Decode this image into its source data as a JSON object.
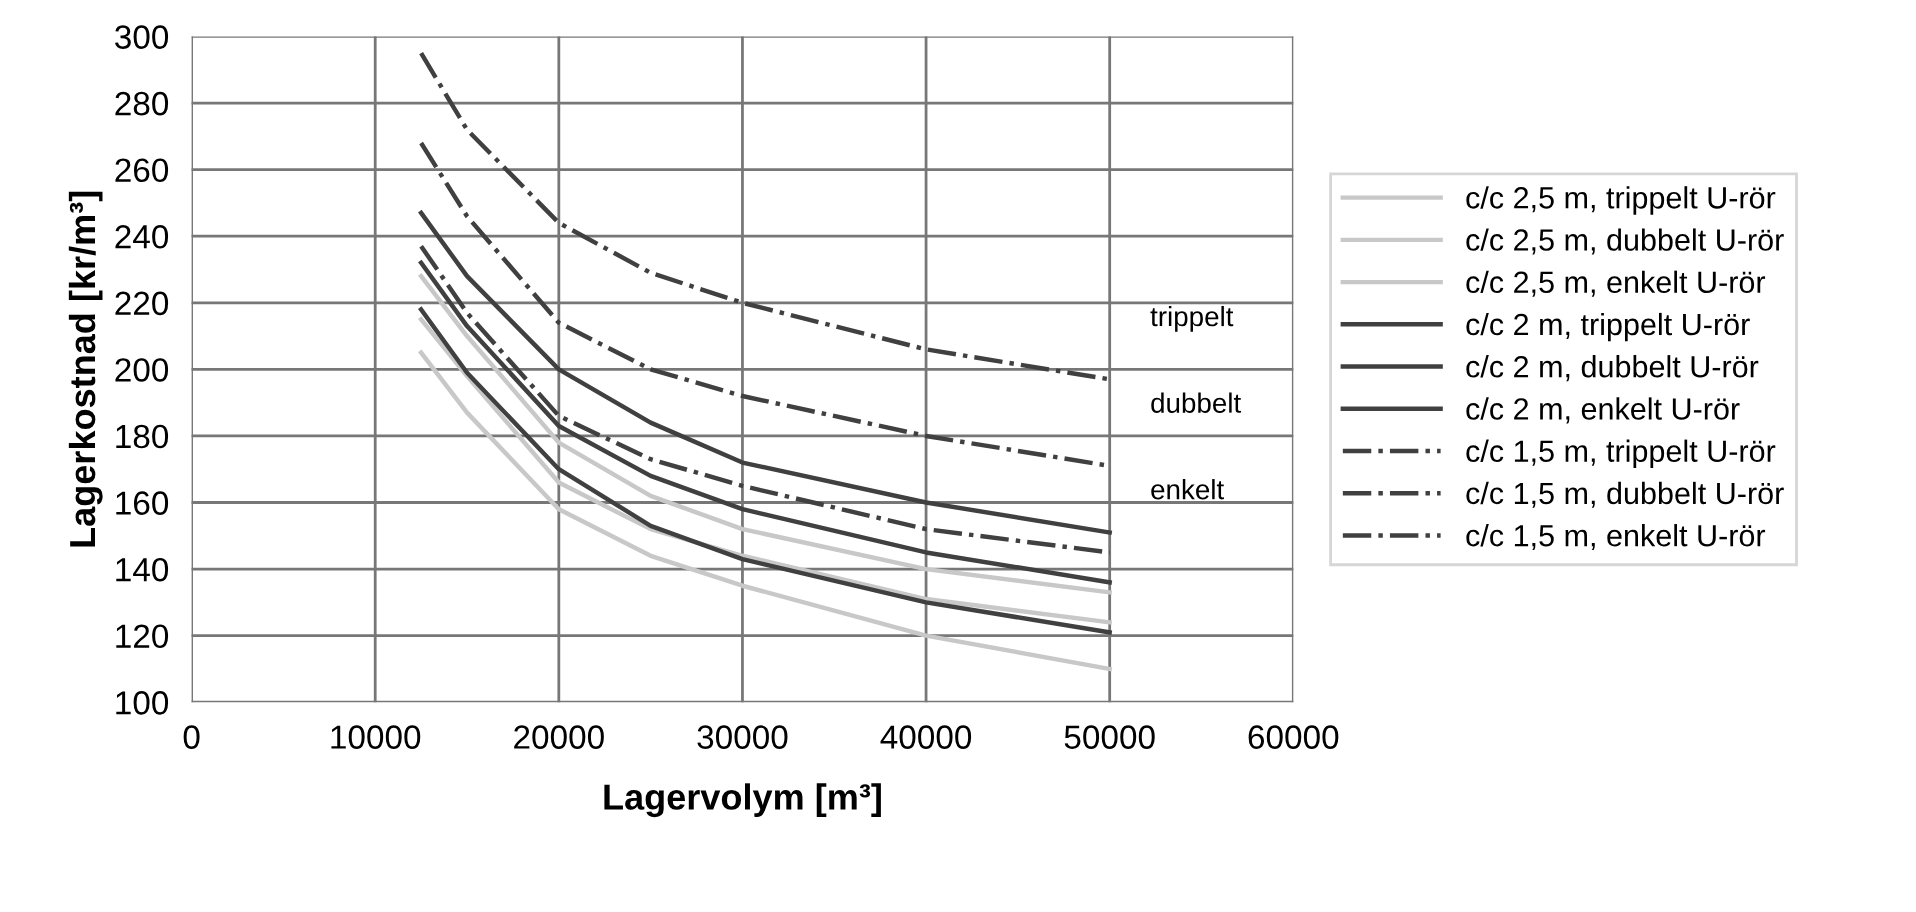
{
  "chart_data": {
    "type": "line",
    "xlabel": "Lagervolym [m³]",
    "ylabel": "Lagerkostnad [kr/m³]",
    "xlim": [
      0,
      60000
    ],
    "ylim": [
      100,
      300
    ],
    "xticks": [
      0,
      10000,
      20000,
      30000,
      40000,
      50000,
      60000
    ],
    "yticks": [
      100,
      120,
      140,
      160,
      180,
      200,
      220,
      240,
      260,
      280,
      300
    ],
    "grid": true,
    "legend": "right",
    "x": [
      12500,
      15000,
      20000,
      25000,
      30000,
      40000,
      50000
    ],
    "series": [
      {
        "name": "c/c 2,5 m, trippelt U-rör",
        "color": "#c8c8c8",
        "line_style": "solid",
        "values": [
          228,
          210,
          178,
          162,
          152,
          140,
          133
        ]
      },
      {
        "name": "c/c 2,5 m, dubbelt U-rör",
        "color": "#c8c8c8",
        "line_style": "solid",
        "values": [
          215,
          198,
          166,
          152,
          144,
          131,
          124
        ]
      },
      {
        "name": "c/c 2,5 m, enkelt U-rör",
        "color": "#c8c8c8",
        "line_style": "solid",
        "values": [
          205,
          187,
          158,
          144,
          135,
          120,
          110
        ]
      },
      {
        "name": "c/c 2 m, trippelt U-rör",
        "color": "#404040",
        "line_style": "solid",
        "values": [
          247,
          228,
          200,
          184,
          172,
          160,
          151
        ]
      },
      {
        "name": "c/c 2 m, dubbelt U-rör",
        "color": "#404040",
        "line_style": "solid",
        "values": [
          232,
          213,
          183,
          168,
          158,
          145,
          136
        ]
      },
      {
        "name": "c/c 2 m, enkelt U-rör",
        "color": "#404040",
        "line_style": "solid",
        "values": [
          218,
          199,
          170,
          153,
          143,
          130,
          121
        ]
      },
      {
        "name": "c/c 1,5 m, trippelt U-rör",
        "color": "#404040",
        "line_style": "dashdot",
        "values": [
          295,
          272,
          244,
          229,
          220,
          206,
          197
        ]
      },
      {
        "name": "c/c 1,5 m, dubbelt U-rör",
        "color": "#404040",
        "line_style": "dashdot",
        "values": [
          268,
          246,
          214,
          200,
          192,
          180,
          171
        ]
      },
      {
        "name": "c/c 1,5 m, enkelt U-rör",
        "color": "#404040",
        "line_style": "dashdot",
        "values": [
          237,
          217,
          186,
          173,
          165,
          152,
          145
        ]
      }
    ],
    "annotations": [
      "trippelt",
      "dubbelt",
      "enkelt"
    ]
  }
}
